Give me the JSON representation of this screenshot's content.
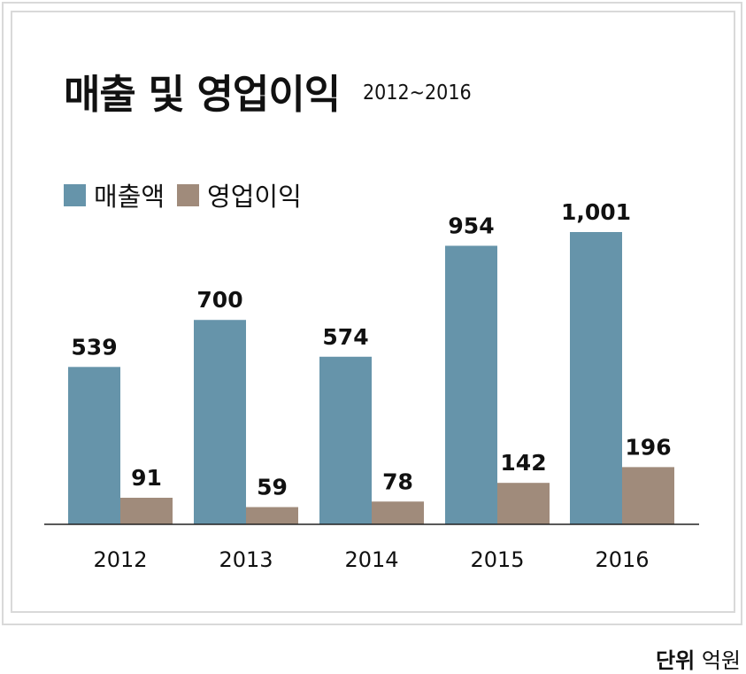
{
  "chart_data": {
    "type": "bar",
    "title": "매출 및 영업이익",
    "subtitle": "2012~2016",
    "categories": [
      "2012",
      "2013",
      "2014",
      "2015",
      "2016"
    ],
    "series": [
      {
        "name": "매출액",
        "color": "#6694aa",
        "values": [
          539,
          700,
          574,
          954,
          1001
        ],
        "labels": [
          "539",
          "700",
          "574",
          "954",
          "1,001"
        ]
      },
      {
        "name": "영업이익",
        "color": "#a08b7b",
        "values": [
          91,
          59,
          78,
          142,
          196
        ],
        "labels": [
          "91",
          "59",
          "78",
          "142",
          "196"
        ]
      }
    ],
    "ylim": [
      0,
      1001
    ],
    "legend_position": "top-left",
    "grid": false
  },
  "unit": {
    "label": "단위",
    "value": "억원"
  }
}
